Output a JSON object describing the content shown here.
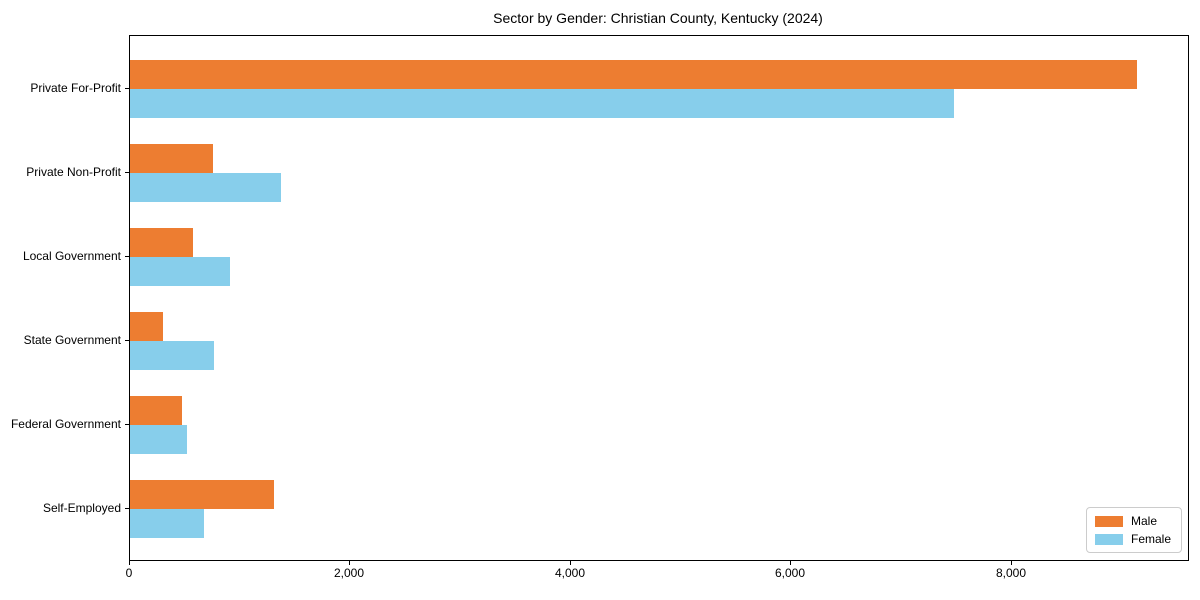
{
  "title": "Sector by Gender: Christian County, Kentucky (2024)",
  "chart_data": {
    "type": "bar",
    "orientation": "horizontal",
    "title": "Sector by Gender: Christian County, Kentucky (2024)",
    "categories": [
      "Private For-Profit",
      "Private Non-Profit",
      "Local Government",
      "State Government",
      "Federal Government",
      "Self-Employed"
    ],
    "series": [
      {
        "name": "Male",
        "color": "#ed7d31",
        "values": [
          9140,
          750,
          570,
          300,
          470,
          1310
        ]
      },
      {
        "name": "Female",
        "color": "#87ceeb",
        "values": [
          7480,
          1370,
          910,
          760,
          520,
          670
        ]
      }
    ],
    "xlabel": "",
    "ylabel": "",
    "xlim": [
      0,
      9600
    ],
    "xticks": [
      0,
      2000,
      4000,
      6000,
      8000
    ],
    "xtick_labels": [
      "0",
      "2,000",
      "4,000",
      "6,000",
      "8,000"
    ],
    "grid": false,
    "legend_position": "lower right"
  },
  "colors": {
    "male": "#ed7d31",
    "female": "#87ceeb",
    "spine": "#000000",
    "background": "#ffffff",
    "legend_border": "#cccccc"
  }
}
